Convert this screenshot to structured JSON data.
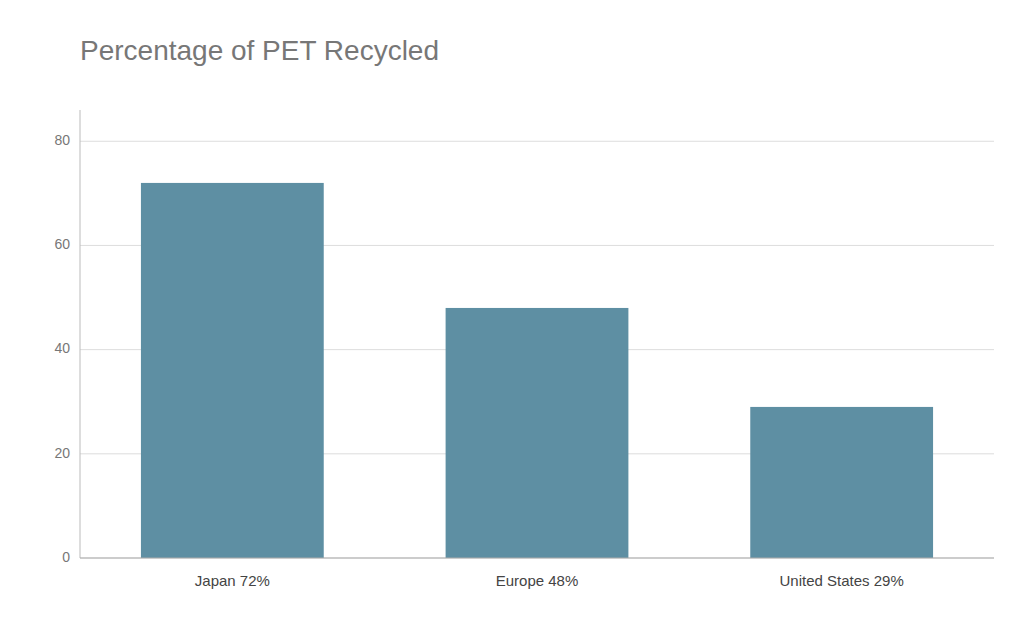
{
  "chart_data": {
    "type": "bar",
    "title": "Percentage of PET Recycled",
    "categories": [
      "Japan 72%",
      "Europe 48%",
      "United States 29%"
    ],
    "values": [
      72,
      48,
      29
    ],
    "color": "#5e8fa3",
    "ylim": [
      0,
      86
    ],
    "yticks": [
      0,
      20,
      40,
      60,
      80
    ],
    "grid": true
  }
}
